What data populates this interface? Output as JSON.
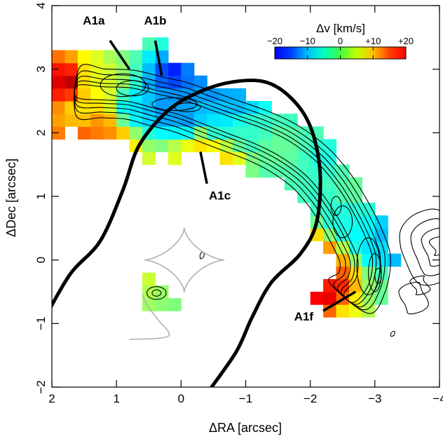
{
  "chart_data": {
    "type": "heatmap",
    "title": "",
    "xlabel": "ΔRA [arcsec]",
    "ylabel": "ΔDec [arcsec]",
    "xlim": [
      2,
      -4
    ],
    "ylim": [
      -2,
      4
    ],
    "xticks": [
      2,
      1,
      0,
      -1,
      -2,
      -3,
      -4
    ],
    "yticks": [
      -2,
      -1,
      0,
      1,
      2,
      3,
      4
    ],
    "xtick_labels": [
      "2",
      "1",
      "0",
      "−1",
      "−2",
      "−3",
      "−4"
    ],
    "ytick_labels": [
      "−2",
      "−1",
      "0",
      "1",
      "2",
      "3",
      "4"
    ],
    "colorbar": {
      "title": "Δv [km/s]",
      "range": [
        -20,
        20
      ],
      "ticks": [
        -20,
        -10,
        0,
        10,
        20
      ],
      "tick_labels": [
        "−20",
        "−10",
        "0",
        "+10",
        "+20"
      ],
      "colormap": "jet"
    },
    "annotations": [
      {
        "text": "A1a",
        "x": 1.35,
        "y": 3.7,
        "pointer": [
          [
            1.1,
            3.45
          ],
          [
            0.8,
            3.0
          ]
        ]
      },
      {
        "text": "A1b",
        "x": 0.4,
        "y": 3.7,
        "pointer": [
          [
            0.4,
            3.45
          ],
          [
            0.3,
            2.9
          ]
        ]
      },
      {
        "text": "A1c",
        "x": -0.6,
        "y": 0.95,
        "pointer": [
          [
            -0.4,
            1.2
          ],
          [
            -0.3,
            1.7
          ]
        ]
      },
      {
        "text": "A1f",
        "x": -1.9,
        "y": -0.95,
        "pointer": [
          [
            -2.2,
            -0.8
          ],
          [
            -2.7,
            -0.5
          ]
        ]
      }
    ],
    "velocity_map": [
      {
        "x": 1.7,
        "y": 2.8,
        "v": 18
      },
      {
        "x": 1.5,
        "y": 2.8,
        "v": 6
      },
      {
        "x": 1.3,
        "y": 2.8,
        "v": 4
      },
      {
        "x": 1.3,
        "y": 3.0,
        "v": 4
      },
      {
        "x": 1.1,
        "y": 3.0,
        "v": 3
      },
      {
        "x": 0.9,
        "y": 3.2,
        "v": 0
      },
      {
        "x": 0.7,
        "y": 3.2,
        "v": -2
      },
      {
        "x": 0.5,
        "y": 3.2,
        "v": -6
      },
      {
        "x": 0.3,
        "y": 3.0,
        "v": -12
      },
      {
        "x": 0.1,
        "y": 3.0,
        "v": -14
      },
      {
        "x": -0.1,
        "y": 3.0,
        "v": -10
      },
      {
        "x": 0.7,
        "y": 3.4,
        "v": 0
      },
      {
        "x": 0.5,
        "y": 3.4,
        "v": -2
      },
      {
        "x": 1.5,
        "y": 2.4,
        "v": 6
      },
      {
        "x": 1.3,
        "y": 2.0,
        "v": 10
      },
      {
        "x": 1.5,
        "y": 1.8,
        "v": 12
      },
      {
        "x": 1.3,
        "y": 1.8,
        "v": 14
      },
      {
        "x": 1.1,
        "y": 1.8,
        "v": 8
      },
      {
        "x": 0.7,
        "y": 2.4,
        "v": -6
      },
      {
        "x": 0.3,
        "y": 2.4,
        "v": -9
      },
      {
        "x": -0.1,
        "y": 2.2,
        "v": -9
      },
      {
        "x": -0.5,
        "y": 2.2,
        "v": -6
      },
      {
        "x": -0.5,
        "y": 2.6,
        "v": -9
      },
      {
        "x": -0.9,
        "y": 2.6,
        "v": -8
      },
      {
        "x": -0.3,
        "y": 1.8,
        "v": 6
      },
      {
        "x": -0.5,
        "y": 1.4,
        "v": 12
      },
      {
        "x": -0.7,
        "y": 1.4,
        "v": 5
      },
      {
        "x": -0.1,
        "y": 1.6,
        "v": 4
      },
      {
        "x": -1.1,
        "y": 2.0,
        "v": -3
      },
      {
        "x": -1.5,
        "y": 1.8,
        "v": -1
      },
      {
        "x": -1.9,
        "y": 2.4,
        "v": -3
      },
      {
        "x": -2.1,
        "y": 2.2,
        "v": -2
      },
      {
        "x": -2.3,
        "y": 1.6,
        "v": -4
      },
      {
        "x": -2.5,
        "y": 1.4,
        "v": -2
      },
      {
        "x": -2.7,
        "y": 1.2,
        "v": -1
      },
      {
        "x": -1.3,
        "y": 1.2,
        "v": -2
      },
      {
        "x": -1.7,
        "y": 1.0,
        "v": -2
      },
      {
        "x": -2.1,
        "y": 1.0,
        "v": -3
      },
      {
        "x": -2.5,
        "y": 0.6,
        "v": -4
      },
      {
        "x": -2.7,
        "y": 0.4,
        "v": -5
      },
      {
        "x": -3.0,
        "y": 0.2,
        "v": -6
      },
      {
        "x": -3.3,
        "y": 0.3,
        "v": -10
      },
      {
        "x": -2.3,
        "y": 0.0,
        "v": 8
      },
      {
        "x": -2.3,
        "y": -0.4,
        "v": 14
      },
      {
        "x": -2.1,
        "y": 0.0,
        "v": 15
      },
      {
        "x": -2.1,
        "y": -0.2,
        "v": 19
      },
      {
        "x": -2.3,
        "y": -0.6,
        "v": 16
      },
      {
        "x": -2.5,
        "y": -0.8,
        "v": 6
      },
      {
        "x": -3.1,
        "y": -0.6,
        "v": -1
      },
      {
        "x": -2.9,
        "y": -0.8,
        "v": 2
      },
      {
        "x": 0.5,
        "y": -0.3,
        "v": 3
      },
      {
        "x": 0.3,
        "y": -0.5,
        "v": 1
      },
      {
        "x": 0.1,
        "y": -0.7,
        "v": 0
      }
    ],
    "line_width": 1
  }
}
